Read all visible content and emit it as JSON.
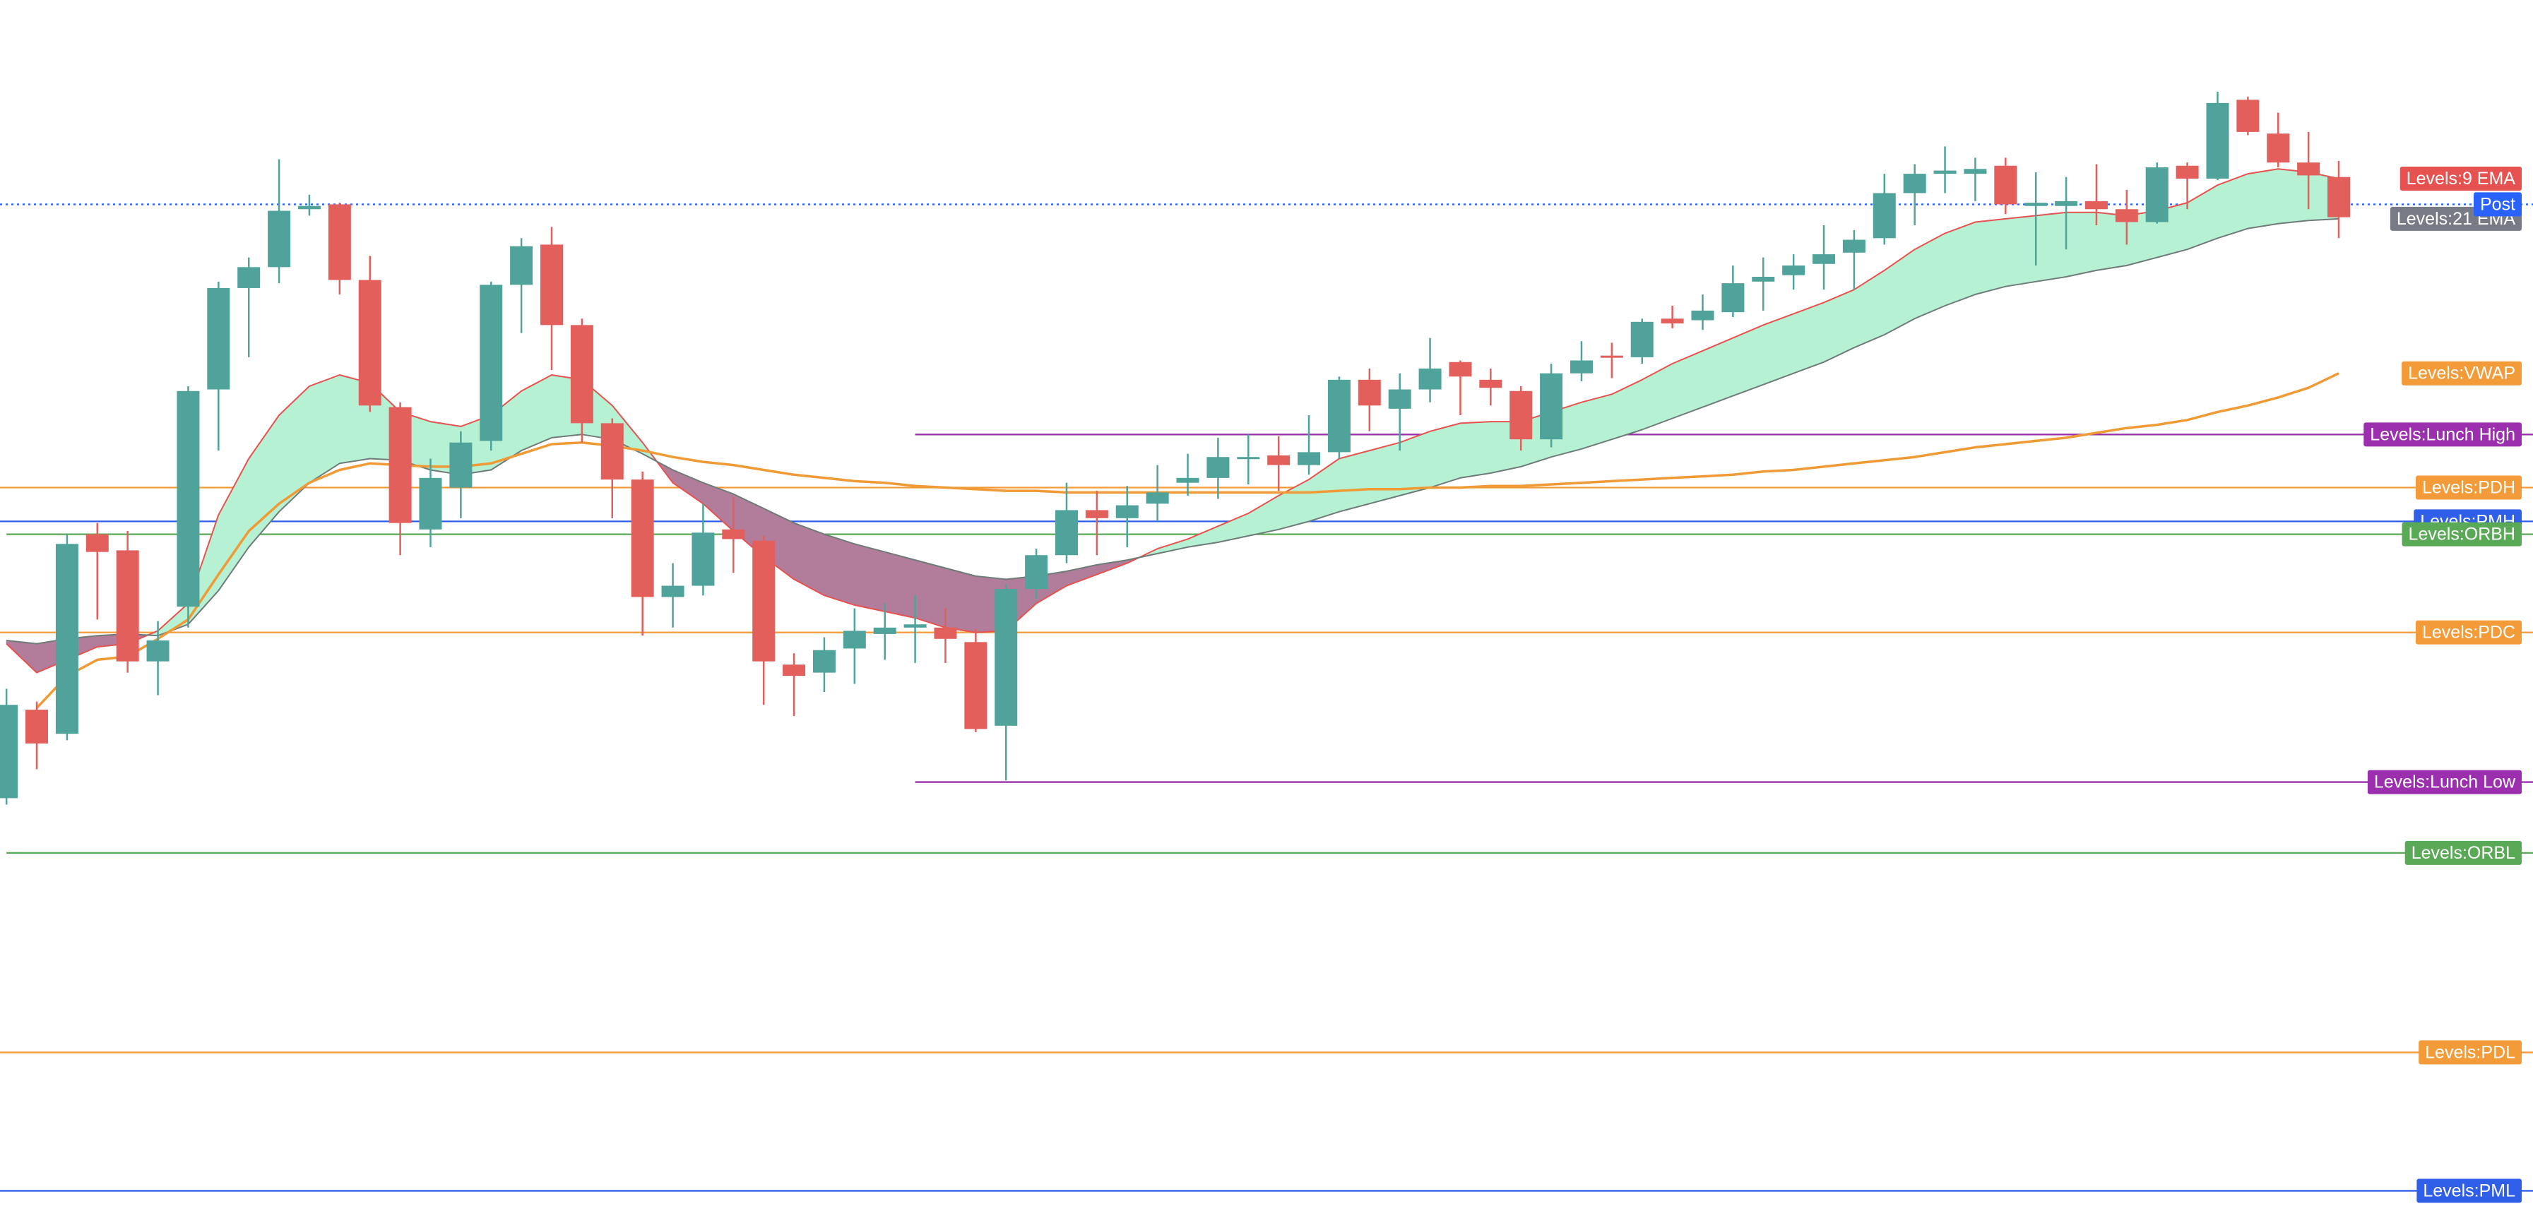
{
  "chart_data": {
    "type": "candlestick",
    "categories": [
      null,
      null,
      null,
      null,
      null,
      null,
      null,
      null,
      null,
      null,
      null,
      null,
      null,
      null,
      null,
      null,
      null,
      null,
      null,
      null,
      null,
      null,
      null,
      null,
      null,
      null,
      null,
      null,
      null,
      null,
      null,
      null,
      null,
      null,
      null,
      null,
      null,
      null,
      null,
      null,
      null,
      null,
      null,
      null,
      null,
      null,
      null,
      null,
      null,
      null,
      null,
      null,
      null,
      null,
      null,
      null,
      null,
      null,
      null,
      null,
      null,
      null,
      null,
      null,
      null,
      null,
      null,
      null,
      null,
      null,
      null,
      null,
      null,
      null,
      null,
      null,
      null,
      null
    ],
    "open": [
      264,
      319,
      304,
      428,
      418,
      349,
      383,
      518,
      581,
      594,
      630,
      633,
      586,
      507,
      431,
      457,
      486,
      583,
      608,
      558,
      497,
      462,
      389,
      396,
      431,
      424,
      347,
      342,
      357,
      366,
      370,
      370,
      361,
      309,
      394,
      415,
      443,
      438,
      447,
      460,
      463,
      475,
      477,
      471,
      479,
      524,
      506,
      518,
      535,
      524,
      517,
      487,
      528,
      539,
      538,
      562,
      561,
      566,
      585,
      589,
      596,
      603,
      612,
      640,
      652,
      652,
      657,
      632,
      632,
      635,
      630,
      622,
      657,
      649,
      698,
      677,
      659,
      650
    ],
    "high": [
      332,
      324,
      428,
      435,
      430,
      374,
      520,
      585,
      600,
      661,
      639,
      634,
      601,
      510,
      475,
      492,
      585,
      612,
      619,
      562,
      500,
      467,
      410,
      447,
      451,
      427,
      354,
      364,
      382,
      385,
      390,
      382,
      369,
      397,
      419,
      460,
      455,
      458,
      471,
      478,
      488,
      490,
      489,
      502,
      526,
      531,
      528,
      550,
      536,
      531,
      520,
      534,
      548,
      547,
      562,
      570,
      577,
      595,
      600,
      602,
      620,
      617,
      652,
      658,
      669,
      662,
      662,
      653,
      650,
      658,
      642,
      659,
      659,
      703,
      700,
      690,
      678,
      660
    ],
    "low": [
      260,
      282,
      300,
      375,
      342,
      328,
      370,
      480,
      538,
      584,
      626,
      577,
      504,
      415,
      420,
      438,
      480,
      553,
      530,
      485,
      438,
      365,
      370,
      390,
      404,
      322,
      315,
      330,
      335,
      350,
      348,
      348,
      305,
      275,
      388,
      410,
      415,
      420,
      436,
      452,
      450,
      459,
      455,
      465,
      475,
      492,
      480,
      510,
      502,
      508,
      480,
      482,
      523,
      525,
      534,
      556,
      555,
      563,
      567,
      580,
      580,
      580,
      608,
      620,
      640,
      635,
      627,
      595,
      605,
      620,
      608,
      621,
      630,
      648,
      676,
      656,
      630,
      612
    ],
    "close": [
      322,
      298,
      422,
      417,
      349,
      362,
      517,
      581,
      594,
      629,
      632,
      586,
      508,
      435,
      463,
      485,
      583,
      607,
      558,
      497,
      462,
      389,
      396,
      429,
      425,
      349,
      340,
      356,
      368,
      370,
      372,
      363,
      307,
      394,
      415,
      443,
      438,
      446,
      454,
      463,
      476,
      476,
      471,
      479,
      524,
      508,
      518,
      531,
      526,
      519,
      487,
      528,
      536,
      538,
      560,
      559,
      567,
      584,
      588,
      595,
      602,
      611,
      640,
      652,
      654,
      655,
      633,
      634,
      635,
      630,
      622,
      656,
      649,
      696,
      678,
      659,
      651,
      625
    ],
    "up_color": "#4fa39a",
    "down_color": "#e25f5b",
    "ylim": [
      0,
      760
    ],
    "series": [
      {
        "name": "Levels:9 EMA",
        "color": "#e5524f",
        "label_color": "#e5524f",
        "values": [
          360,
          342,
          350,
          358,
          360,
          368,
          385,
          440,
          475,
          502,
          520,
          527,
          522,
          504,
          498,
          495,
          502,
          517,
          527,
          524,
          508,
          485,
          460,
          447,
          430,
          414,
          400,
          390,
          384,
          380,
          376,
          370,
          367,
          368,
          385,
          396,
          403,
          410,
          419,
          425,
          433,
          441,
          452,
          462,
          475,
          480,
          485,
          492,
          497,
          498,
          498,
          504,
          510,
          515,
          524,
          534,
          542,
          550,
          558,
          565,
          572,
          580,
          592,
          605,
          615,
          622,
          624,
          626,
          628,
          628,
          626,
          629,
          634,
          645,
          652,
          655,
          653,
          649
        ]
      },
      {
        "name": "Levels:21 EMA",
        "color": "#6f7b78",
        "label_color": "#787b86",
        "values": [
          362,
          360,
          363,
          365,
          366,
          365,
          372,
          393,
          420,
          442,
          460,
          472,
          475,
          474,
          468,
          465,
          468,
          480,
          488,
          490,
          487,
          478,
          468,
          460,
          453,
          444,
          435,
          428,
          422,
          417,
          412,
          407,
          402,
          400,
          402,
          405,
          409,
          412,
          416,
          420,
          423,
          427,
          431,
          436,
          442,
          447,
          452,
          457,
          463,
          466,
          470,
          476,
          481,
          487,
          493,
          500,
          507,
          514,
          521,
          528,
          535,
          544,
          552,
          562,
          570,
          577,
          582,
          585,
          588,
          592,
          595,
          600,
          605,
          612,
          618,
          621,
          623,
          624
        ]
      },
      {
        "name": "Levels:VWAP",
        "color": "#f09a35",
        "label_color": "#f39b38",
        "values": [
          null,
          320,
          340,
          350,
          352,
          363,
          375,
          403,
          430,
          447,
          460,
          468,
          472,
          471,
          470,
          470,
          472,
          478,
          484,
          485,
          483,
          480,
          476,
          473,
          471,
          468,
          465,
          463,
          461,
          460,
          458,
          457,
          456,
          455,
          455,
          454,
          454,
          454,
          454,
          454,
          454,
          454,
          454,
          454,
          455,
          456,
          456,
          457,
          457,
          458,
          458,
          459,
          460,
          461,
          462,
          463,
          464,
          465,
          467,
          468,
          470,
          472,
          474,
          476,
          479,
          482,
          484,
          486,
          488,
          491,
          494,
          496,
          499,
          504,
          508,
          513,
          519,
          528
        ]
      }
    ],
    "cloud_colors": {
      "up": "#b6f1d4",
      "down": "#b27c9b"
    },
    "levels": [
      {
        "name": "Levels:PML",
        "value": 20,
        "color": "#2f5fe8"
      },
      {
        "name": "Levels:PDL",
        "value": 106,
        "color": "#f39b38"
      },
      {
        "name": "Levels:ORBL",
        "value": 230,
        "color": "#5aa956",
        "from": 0
      },
      {
        "name": "Levels:Lunch Low",
        "value": 274,
        "color": "#9b2fae",
        "from": 30
      },
      {
        "name": "Levels:PDC",
        "value": 367,
        "color": "#f39b38"
      },
      {
        "name": "Levels:PMH",
        "value": 436,
        "color": "#2f5fe8"
      },
      {
        "name": "Levels:ORBH",
        "value": 428,
        "color": "#5aa956",
        "from": 0
      },
      {
        "name": "Levels:PDH",
        "value": 457,
        "color": "#f39b38"
      },
      {
        "name": "Levels:Lunch High",
        "value": 490,
        "color": "#9b2fae",
        "from": 30
      },
      {
        "name": "Post",
        "value": 633,
        "color": "#2962ff",
        "style": "dotted"
      }
    ]
  }
}
